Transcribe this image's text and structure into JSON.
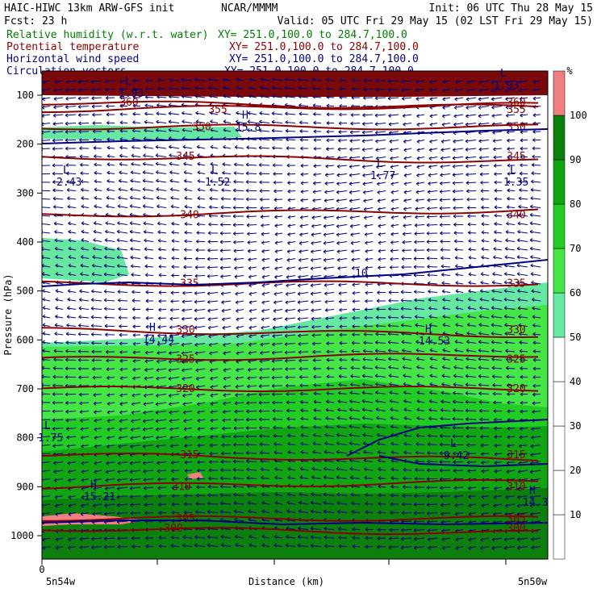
{
  "header": {
    "model_line": "HAIC-HIWC 13km ARW-GFS init",
    "org": "NCAR/MMMM",
    "init": "Init: 06 UTC Thu 28 May 15",
    "fcst": "Fcst:   23 h",
    "valid": "Valid: 05 UTC Fri 29 May 15 (02 LST Fri 29 May 15)",
    "fields": [
      {
        "name": "Relative humidity (w.r.t. water)",
        "xy": "XY= 251.0,100.0 to 284.7,100.0",
        "color": "#007f00"
      },
      {
        "name": "Potential temperature",
        "xy": "XY= 251.0,100.0 to 284.7,100.0",
        "color": "#8b0000"
      },
      {
        "name": "Horizontal wind speed",
        "xy": "XY= 251.0,100.0 to 284.7,100.0",
        "color": "#000080"
      },
      {
        "name": "Circulation vectors",
        "xy": "XY= 251.0,100.0 to 284.7,100.0",
        "color": "#000080"
      }
    ]
  },
  "chart_data": {
    "type": "heatmap",
    "description_fields": [
      "relative humidity shading",
      "potential temperature contours",
      "wind speed contours",
      "circulation vectors"
    ],
    "ylabel": "Pressure (hPa)",
    "xlabel": "Distance (km)",
    "y_ticks": [
      100,
      200,
      300,
      400,
      500,
      600,
      700,
      800,
      900,
      1000
    ],
    "ylim": [
      1000,
      85
    ],
    "x_ticks": [
      0
    ],
    "x_left_label": "5n54w",
    "x_right_label": "5n50w",
    "colorbar": {
      "unit": "%",
      "levels": [
        10,
        20,
        30,
        40,
        50,
        60,
        70,
        80,
        90,
        100
      ],
      "colors": [
        "#ffffff",
        "#ffffff",
        "#ffffff",
        "#ffffff",
        "#ffffff",
        "#66e8a0",
        "#44e544",
        "#22cc22",
        "#11a611",
        "#0d7f0d",
        "#f08080"
      ]
    },
    "theta_contours": [
      {
        "value": "300",
        "p": 985
      },
      {
        "value": "305",
        "p": 965
      },
      {
        "value": "310",
        "p": 900
      },
      {
        "value": "315",
        "p": 835
      },
      {
        "value": "320",
        "p": 700
      },
      {
        "value": "325",
        "p": 640
      },
      {
        "value": "330",
        "p": 580
      },
      {
        "value": "335",
        "p": 485
      },
      {
        "value": "340",
        "p": 345
      },
      {
        "value": "345",
        "p": 225
      },
      {
        "value": "350",
        "p": 165
      },
      {
        "value": "355",
        "p": 130
      },
      {
        "value": "360",
        "p": 115
      }
    ],
    "annotations": [
      {
        "text": "L",
        "sub": "2.43"
      },
      {
        "text": "L",
        "sub": "1.52"
      },
      {
        "text": "L",
        "sub": "1.77"
      },
      {
        "text": "L",
        "sub": "1.35"
      },
      {
        "text": "H",
        "sub": "14.44"
      },
      {
        "text": "H",
        "sub": "14.53"
      },
      {
        "text": "L",
        "sub": "1.75"
      },
      {
        "text": "L",
        "sub": "9.42"
      },
      {
        "text": "H",
        "sub": "15.21"
      },
      {
        "text": "H",
        "sub": "14.3"
      },
      {
        "text": "H",
        "sub": "15.8"
      },
      {
        "text": "L",
        "sub": "1.93"
      },
      {
        "text": "L",
        "sub": "1.93"
      },
      {
        "text": "10",
        "sub": ""
      }
    ]
  }
}
